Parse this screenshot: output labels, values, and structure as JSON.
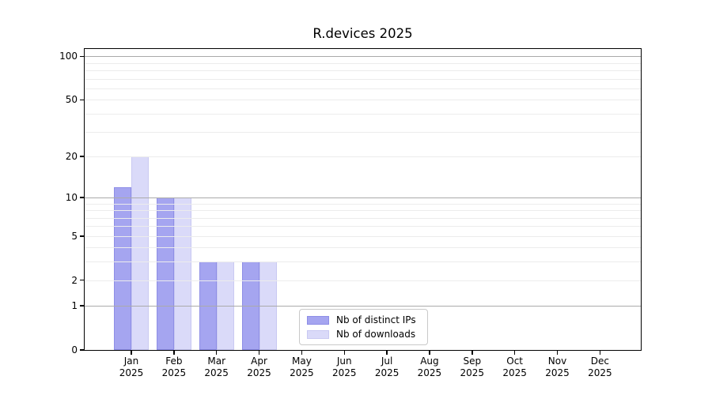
{
  "title": "R.devices 2025",
  "legend": {
    "items": [
      {
        "label": "Nb of distinct IPs",
        "color": "#a5a5f0",
        "edge_color": "#8e8ee6"
      },
      {
        "label": "Nb of downloads",
        "color": "#dadaf9",
        "edge_color": "#c9c9f2"
      }
    ]
  },
  "chart_data": {
    "type": "bar",
    "title": "R.devices 2025",
    "categories": [
      "Jan",
      "Feb",
      "Mar",
      "Apr",
      "May",
      "Jun",
      "Jul",
      "Aug",
      "Sep",
      "Oct",
      "Nov",
      "Dec"
    ],
    "category_year": "2025",
    "series": [
      {
        "name": "Nb of distinct IPs",
        "color": "#a5a5f0",
        "edge_color": "#8e8ee6",
        "values": [
          12,
          10,
          3,
          3,
          0,
          0,
          0,
          0,
          0,
          0,
          0,
          0
        ]
      },
      {
        "name": "Nb of downloads",
        "color": "#dadaf9",
        "edge_color": "#c9c9f2",
        "values": [
          20,
          10,
          3,
          3,
          0,
          0,
          0,
          0,
          0,
          0,
          0,
          0
        ]
      }
    ],
    "xlabel": "",
    "ylabel": "",
    "yscale": "log1p",
    "ylim": [
      0,
      112
    ],
    "ytick_values": [
      0,
      1,
      2,
      5,
      10,
      20,
      50,
      100
    ],
    "ytick_labels": [
      "0",
      "1",
      "2",
      "5",
      "10",
      "20",
      "50",
      "100"
    ],
    "y_major_gridlines": [
      1,
      10,
      100
    ],
    "y_minor_gridlines": [
      2,
      3,
      4,
      5,
      6,
      7,
      8,
      9,
      20,
      30,
      40,
      50,
      60,
      70,
      80,
      90
    ],
    "grid": "on",
    "legend_position": "inside lower-center-left",
    "colors": {
      "major_grid": "#aaaaaa",
      "minor_grid": "#ececec",
      "spine": "#000000",
      "text": "#000000",
      "background": "#ffffff"
    }
  }
}
